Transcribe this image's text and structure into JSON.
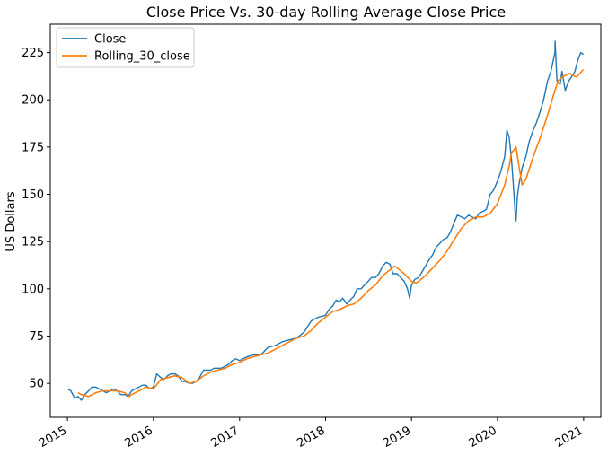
{
  "chart_data": {
    "type": "line",
    "title": "Close Price Vs. 30-day Rolling Average Close Price",
    "xlabel": "",
    "ylabel": "US Dollars",
    "xlim": [
      "2014-10-20",
      "2021-03-15"
    ],
    "ylim": [
      32,
      240
    ],
    "x_ticks": [
      "2015",
      "2016",
      "2017",
      "2018",
      "2019",
      "2020",
      "2021"
    ],
    "y_ticks": [
      50,
      75,
      100,
      125,
      150,
      175,
      200,
      225
    ],
    "grid": false,
    "legend": {
      "position": "top-left",
      "entries": [
        "Close",
        "Rolling_30_close"
      ]
    },
    "series": [
      {
        "name": "Close",
        "color": "#1f77b4",
        "x": [
          "2015-01-02",
          "2015-01-15",
          "2015-02-01",
          "2015-02-15",
          "2015-03-01",
          "2015-03-15",
          "2015-04-01",
          "2015-04-15",
          "2015-05-01",
          "2015-05-15",
          "2015-06-01",
          "2015-06-15",
          "2015-07-01",
          "2015-07-15",
          "2015-08-01",
          "2015-08-15",
          "2015-09-01",
          "2015-09-15",
          "2015-10-01",
          "2015-10-15",
          "2015-11-01",
          "2015-11-15",
          "2015-12-01",
          "2015-12-15",
          "2016-01-01",
          "2016-01-15",
          "2016-02-01",
          "2016-02-15",
          "2016-03-01",
          "2016-03-15",
          "2016-04-01",
          "2016-04-15",
          "2016-05-01",
          "2016-05-15",
          "2016-06-01",
          "2016-06-15",
          "2016-07-01",
          "2016-07-15",
          "2016-08-01",
          "2016-08-15",
          "2016-09-01",
          "2016-09-15",
          "2016-10-01",
          "2016-10-15",
          "2016-11-01",
          "2016-11-15",
          "2016-12-01",
          "2016-12-15",
          "2017-01-01",
          "2017-02-01",
          "2017-03-01",
          "2017-04-01",
          "2017-05-01",
          "2017-06-01",
          "2017-07-01",
          "2017-08-01",
          "2017-09-01",
          "2017-10-01",
          "2017-11-01",
          "2017-12-01",
          "2018-01-01",
          "2018-01-15",
          "2018-02-01",
          "2018-02-15",
          "2018-03-01",
          "2018-03-15",
          "2018-04-01",
          "2018-04-15",
          "2018-05-01",
          "2018-05-15",
          "2018-06-01",
          "2018-06-15",
          "2018-07-01",
          "2018-07-15",
          "2018-08-01",
          "2018-08-15",
          "2018-09-01",
          "2018-09-15",
          "2018-10-01",
          "2018-10-15",
          "2018-11-01",
          "2018-11-15",
          "2018-12-01",
          "2018-12-15",
          "2018-12-24",
          "2019-01-01",
          "2019-01-15",
          "2019-02-01",
          "2019-02-15",
          "2019-03-01",
          "2019-03-15",
          "2019-04-01",
          "2019-04-15",
          "2019-05-01",
          "2019-05-15",
          "2019-06-01",
          "2019-06-15",
          "2019-07-01",
          "2019-07-15",
          "2019-08-01",
          "2019-08-15",
          "2019-09-01",
          "2019-09-15",
          "2019-10-01",
          "2019-10-15",
          "2019-11-01",
          "2019-11-15",
          "2019-12-01",
          "2019-12-15",
          "2020-01-01",
          "2020-01-15",
          "2020-02-01",
          "2020-02-10",
          "2020-02-20",
          "2020-03-01",
          "2020-03-10",
          "2020-03-16",
          "2020-03-20",
          "2020-03-25",
          "2020-04-01",
          "2020-04-15",
          "2020-05-01",
          "2020-05-15",
          "2020-06-01",
          "2020-06-15",
          "2020-07-01",
          "2020-07-15",
          "2020-08-01",
          "2020-08-15",
          "2020-09-01",
          "2020-09-02",
          "2020-09-10",
          "2020-09-23",
          "2020-10-01",
          "2020-10-15",
          "2020-10-30",
          "2020-11-10",
          "2020-11-25",
          "2020-12-01",
          "2020-12-10",
          "2020-12-20",
          "2020-12-31"
        ],
        "y": [
          47,
          46,
          42,
          43,
          41,
          44,
          46,
          48,
          48,
          47,
          46,
          45,
          46,
          47,
          46,
          44,
          44,
          43,
          46,
          47,
          48,
          49,
          49,
          47,
          48,
          55,
          53,
          52,
          54,
          55,
          55,
          54,
          51,
          51,
          50,
          50,
          51,
          53,
          57,
          57,
          57,
          58,
          58,
          58,
          59,
          60,
          62,
          63,
          62,
          64,
          65,
          65,
          69,
          70,
          72,
          73,
          74,
          77,
          83,
          85,
          86,
          89,
          91,
          94,
          93,
          95,
          92,
          94,
          96,
          100,
          100,
          102,
          104,
          106,
          106,
          108,
          112,
          114,
          113,
          108,
          108,
          106,
          104,
          100,
          95,
          102,
          105,
          106,
          109,
          112,
          115,
          118,
          122,
          124,
          126,
          127,
          130,
          135,
          139,
          138,
          137,
          139,
          138,
          137,
          140,
          141,
          142,
          150,
          152,
          157,
          162,
          170,
          184,
          180,
          168,
          152,
          140,
          136,
          148,
          155,
          164,
          170,
          178,
          184,
          188,
          194,
          200,
          210,
          215,
          225,
          231,
          210,
          208,
          215,
          205,
          210,
          212,
          215,
          218,
          222,
          225,
          224
        ]
      },
      {
        "name": "Rolling_30_close",
        "color": "#ff7f0e",
        "x": [
          "2015-02-15",
          "2015-03-01",
          "2015-04-01",
          "2015-05-01",
          "2015-06-01",
          "2015-07-01",
          "2015-08-01",
          "2015-09-01",
          "2015-09-20",
          "2015-10-01",
          "2015-11-01",
          "2015-12-01",
          "2016-01-01",
          "2016-02-01",
          "2016-03-01",
          "2016-04-01",
          "2016-05-01",
          "2016-06-01",
          "2016-07-01",
          "2016-08-01",
          "2016-09-01",
          "2016-10-01",
          "2016-11-01",
          "2016-12-01",
          "2017-01-01",
          "2017-02-01",
          "2017-03-01",
          "2017-04-01",
          "2017-05-01",
          "2017-06-01",
          "2017-07-01",
          "2017-08-01",
          "2017-09-01",
          "2017-10-01",
          "2017-11-01",
          "2017-12-01",
          "2018-01-01",
          "2018-02-01",
          "2018-03-01",
          "2018-04-01",
          "2018-05-01",
          "2018-06-01",
          "2018-07-01",
          "2018-08-01",
          "2018-09-01",
          "2018-10-01",
          "2018-10-20",
          "2018-11-01",
          "2018-12-01",
          "2019-01-01",
          "2019-01-20",
          "2019-02-01",
          "2019-03-01",
          "2019-04-01",
          "2019-05-01",
          "2019-06-01",
          "2019-07-01",
          "2019-08-01",
          "2019-09-01",
          "2019-10-01",
          "2019-11-01",
          "2019-12-01",
          "2020-01-01",
          "2020-02-01",
          "2020-02-20",
          "2020-03-01",
          "2020-03-20",
          "2020-04-01",
          "2020-04-15",
          "2020-05-01",
          "2020-06-01",
          "2020-07-01",
          "2020-08-01",
          "2020-09-01",
          "2020-09-15",
          "2020-10-01",
          "2020-11-01",
          "2020-12-01",
          "2020-12-31"
        ],
        "y": [
          45,
          44,
          43,
          45,
          46,
          46,
          46,
          45,
          43,
          44,
          46,
          48,
          47,
          52,
          53,
          54,
          53,
          50,
          51,
          54,
          56,
          57,
          58,
          60,
          61,
          63,
          64,
          65,
          66,
          68,
          70,
          72,
          74,
          75,
          78,
          82,
          85,
          88,
          89,
          91,
          92,
          95,
          99,
          102,
          107,
          110,
          112,
          111,
          108,
          104,
          103,
          104,
          107,
          111,
          115,
          120,
          126,
          132,
          136,
          138,
          138,
          140,
          145,
          155,
          165,
          172,
          175,
          165,
          155,
          158,
          170,
          180,
          192,
          205,
          210,
          212,
          214,
          212,
          216
        ]
      }
    ]
  }
}
